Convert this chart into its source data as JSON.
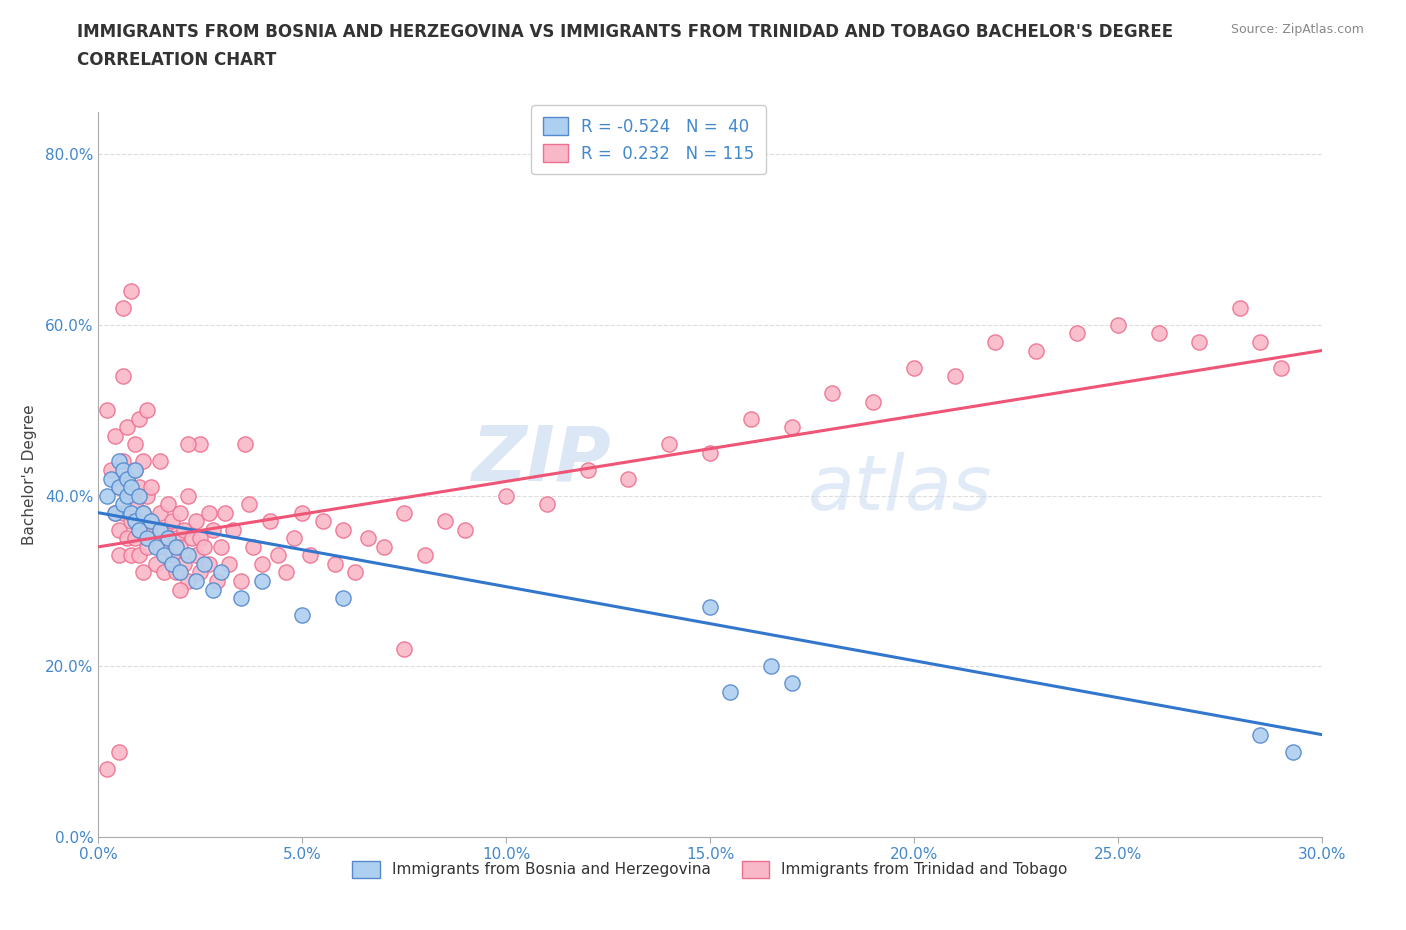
{
  "title_line1": "IMMIGRANTS FROM BOSNIA AND HERZEGOVINA VS IMMIGRANTS FROM TRINIDAD AND TOBAGO BACHELOR'S DEGREE",
  "title_line2": "CORRELATION CHART",
  "source_text": "Source: ZipAtlas.com",
  "watermark_text": "ZIP",
  "watermark_text2": "atlas",
  "ylabel": "Bachelor's Degree",
  "legend_entries": [
    {
      "label": "R = -0.524   N =  40",
      "facecolor": "#aed0f0",
      "edgecolor": "#6699cc"
    },
    {
      "label": "R =  0.232   N = 115",
      "facecolor": "#f9b8c8",
      "edgecolor": "#ee7090"
    }
  ],
  "legend_label1": "Immigrants from Bosnia and Herzegovina",
  "legend_label2": "Immigrants from Trinidad and Tobago",
  "blue_scatter": [
    [
      0.002,
      0.4
    ],
    [
      0.003,
      0.42
    ],
    [
      0.004,
      0.38
    ],
    [
      0.005,
      0.44
    ],
    [
      0.005,
      0.41
    ],
    [
      0.006,
      0.43
    ],
    [
      0.006,
      0.39
    ],
    [
      0.007,
      0.42
    ],
    [
      0.007,
      0.4
    ],
    [
      0.008,
      0.38
    ],
    [
      0.008,
      0.41
    ],
    [
      0.009,
      0.43
    ],
    [
      0.009,
      0.37
    ],
    [
      0.01,
      0.4
    ],
    [
      0.01,
      0.36
    ],
    [
      0.011,
      0.38
    ],
    [
      0.012,
      0.35
    ],
    [
      0.013,
      0.37
    ],
    [
      0.014,
      0.34
    ],
    [
      0.015,
      0.36
    ],
    [
      0.016,
      0.33
    ],
    [
      0.017,
      0.35
    ],
    [
      0.018,
      0.32
    ],
    [
      0.019,
      0.34
    ],
    [
      0.02,
      0.31
    ],
    [
      0.022,
      0.33
    ],
    [
      0.024,
      0.3
    ],
    [
      0.026,
      0.32
    ],
    [
      0.028,
      0.29
    ],
    [
      0.03,
      0.31
    ],
    [
      0.035,
      0.28
    ],
    [
      0.04,
      0.3
    ],
    [
      0.05,
      0.26
    ],
    [
      0.06,
      0.28
    ],
    [
      0.15,
      0.27
    ],
    [
      0.155,
      0.17
    ],
    [
      0.165,
      0.2
    ],
    [
      0.17,
      0.18
    ],
    [
      0.285,
      0.12
    ],
    [
      0.293,
      0.1
    ]
  ],
  "pink_scatter": [
    [
      0.002,
      0.5
    ],
    [
      0.003,
      0.43
    ],
    [
      0.004,
      0.38
    ],
    [
      0.004,
      0.47
    ],
    [
      0.005,
      0.33
    ],
    [
      0.005,
      0.41
    ],
    [
      0.005,
      0.36
    ],
    [
      0.006,
      0.44
    ],
    [
      0.006,
      0.38
    ],
    [
      0.006,
      0.62
    ],
    [
      0.007,
      0.35
    ],
    [
      0.007,
      0.42
    ],
    [
      0.007,
      0.48
    ],
    [
      0.008,
      0.37
    ],
    [
      0.008,
      0.33
    ],
    [
      0.008,
      0.4
    ],
    [
      0.009,
      0.46
    ],
    [
      0.009,
      0.35
    ],
    [
      0.009,
      0.39
    ],
    [
      0.009,
      0.43
    ],
    [
      0.01,
      0.36
    ],
    [
      0.01,
      0.41
    ],
    [
      0.01,
      0.33
    ],
    [
      0.011,
      0.38
    ],
    [
      0.011,
      0.44
    ],
    [
      0.011,
      0.31
    ],
    [
      0.012,
      0.36
    ],
    [
      0.012,
      0.4
    ],
    [
      0.012,
      0.34
    ],
    [
      0.013,
      0.37
    ],
    [
      0.013,
      0.41
    ],
    [
      0.014,
      0.35
    ],
    [
      0.014,
      0.32
    ],
    [
      0.015,
      0.38
    ],
    [
      0.015,
      0.34
    ],
    [
      0.016,
      0.36
    ],
    [
      0.016,
      0.31
    ],
    [
      0.017,
      0.39
    ],
    [
      0.017,
      0.35
    ],
    [
      0.018,
      0.33
    ],
    [
      0.018,
      0.37
    ],
    [
      0.019,
      0.31
    ],
    [
      0.019,
      0.35
    ],
    [
      0.02,
      0.34
    ],
    [
      0.02,
      0.38
    ],
    [
      0.021,
      0.32
    ],
    [
      0.021,
      0.36
    ],
    [
      0.022,
      0.3
    ],
    [
      0.022,
      0.4
    ],
    [
      0.023,
      0.35
    ],
    [
      0.024,
      0.33
    ],
    [
      0.024,
      0.37
    ],
    [
      0.025,
      0.31
    ],
    [
      0.025,
      0.35
    ],
    [
      0.026,
      0.34
    ],
    [
      0.027,
      0.38
    ],
    [
      0.027,
      0.32
    ],
    [
      0.028,
      0.36
    ],
    [
      0.029,
      0.3
    ],
    [
      0.03,
      0.34
    ],
    [
      0.031,
      0.38
    ],
    [
      0.032,
      0.32
    ],
    [
      0.033,
      0.36
    ],
    [
      0.035,
      0.3
    ],
    [
      0.036,
      0.46
    ],
    [
      0.037,
      0.39
    ],
    [
      0.038,
      0.34
    ],
    [
      0.04,
      0.32
    ],
    [
      0.042,
      0.37
    ],
    [
      0.044,
      0.33
    ],
    [
      0.046,
      0.31
    ],
    [
      0.048,
      0.35
    ],
    [
      0.05,
      0.38
    ],
    [
      0.052,
      0.33
    ],
    [
      0.055,
      0.37
    ],
    [
      0.058,
      0.32
    ],
    [
      0.06,
      0.36
    ],
    [
      0.063,
      0.31
    ],
    [
      0.066,
      0.35
    ],
    [
      0.07,
      0.34
    ],
    [
      0.075,
      0.38
    ],
    [
      0.08,
      0.33
    ],
    [
      0.085,
      0.37
    ],
    [
      0.09,
      0.36
    ],
    [
      0.1,
      0.4
    ],
    [
      0.11,
      0.39
    ],
    [
      0.12,
      0.43
    ],
    [
      0.13,
      0.42
    ],
    [
      0.14,
      0.46
    ],
    [
      0.15,
      0.45
    ],
    [
      0.16,
      0.49
    ],
    [
      0.17,
      0.48
    ],
    [
      0.18,
      0.52
    ],
    [
      0.19,
      0.51
    ],
    [
      0.2,
      0.55
    ],
    [
      0.21,
      0.54
    ],
    [
      0.22,
      0.58
    ],
    [
      0.23,
      0.57
    ],
    [
      0.24,
      0.59
    ],
    [
      0.25,
      0.6
    ],
    [
      0.26,
      0.59
    ],
    [
      0.27,
      0.58
    ],
    [
      0.28,
      0.62
    ],
    [
      0.285,
      0.58
    ],
    [
      0.29,
      0.55
    ],
    [
      0.002,
      0.08
    ],
    [
      0.005,
      0.1
    ],
    [
      0.075,
      0.22
    ],
    [
      0.025,
      0.46
    ],
    [
      0.006,
      0.54
    ],
    [
      0.008,
      0.64
    ],
    [
      0.01,
      0.49
    ],
    [
      0.012,
      0.5
    ],
    [
      0.015,
      0.44
    ],
    [
      0.02,
      0.29
    ],
    [
      0.022,
      0.46
    ]
  ],
  "blue_line": {
    "x": [
      0.0,
      0.3
    ],
    "y": [
      0.38,
      0.12
    ]
  },
  "pink_line": {
    "x": [
      0.0,
      0.3
    ],
    "y": [
      0.34,
      0.57
    ]
  },
  "xlim": [
    0.0,
    0.3
  ],
  "ylim": [
    0.0,
    0.85
  ],
  "xticks": [
    0.0,
    0.05,
    0.1,
    0.15,
    0.2,
    0.25,
    0.3
  ],
  "yticks": [
    0.0,
    0.2,
    0.4,
    0.6,
    0.8
  ],
  "title_fontsize": 12,
  "label_fontsize": 11,
  "tick_fontsize": 11,
  "scatter_size": 120,
  "bg_color": "#ffffff",
  "grid_color": "#dddddd",
  "tick_color": "#4488cc"
}
